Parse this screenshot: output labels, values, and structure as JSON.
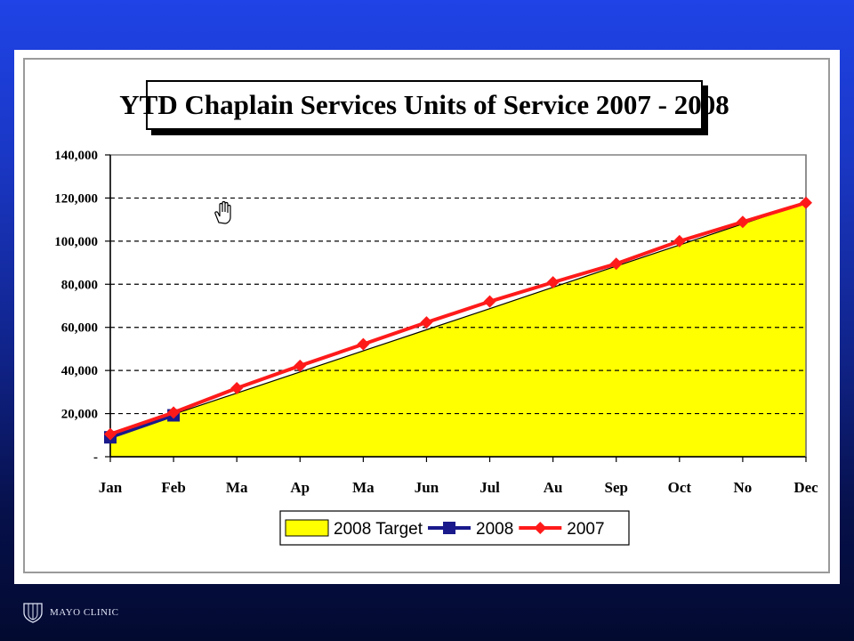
{
  "chart_data": {
    "type": "line",
    "title": "YTD Chaplain Services Units of Service 2007 - 2008",
    "categories": [
      "Jan",
      "Feb",
      "Ma",
      "Ap",
      "Ma",
      "Jun",
      "Jul",
      "Au",
      "Sep",
      "Oct",
      "No",
      "Dec"
    ],
    "y_tick_labels": [
      "-",
      "20,000",
      "40,000",
      "60,000",
      "80,000",
      "100,000",
      "120,000",
      "140,000"
    ],
    "ylim": [
      0,
      140000
    ],
    "y_ticks": [
      0,
      20000,
      40000,
      60000,
      80000,
      100000,
      120000,
      140000
    ],
    "grid": "dashed horizontal",
    "legend_position": "bottom",
    "series": [
      {
        "name": "2008 Target",
        "kind": "area",
        "color": "#ffff00",
        "values": [
          9900,
          19700,
          29500,
          39300,
          49100,
          58900,
          68700,
          78600,
          88400,
          98200,
          108000,
          117800
        ]
      },
      {
        "name": "2008",
        "kind": "line",
        "color": "#1a1a8c",
        "marker": "square",
        "values": [
          9000,
          19200,
          null,
          null,
          null,
          null,
          null,
          null,
          null,
          null,
          null,
          null
        ]
      },
      {
        "name": "2007",
        "kind": "line",
        "color": "#ff1a1a",
        "marker": "diamond",
        "values": [
          10500,
          20500,
          31800,
          42200,
          52200,
          62300,
          72000,
          80900,
          89500,
          100000,
          108900,
          117800
        ]
      }
    ]
  },
  "footer": {
    "logo_text": "MAYO CLINIC",
    "logo_icon": "mayo-shield-icon"
  }
}
